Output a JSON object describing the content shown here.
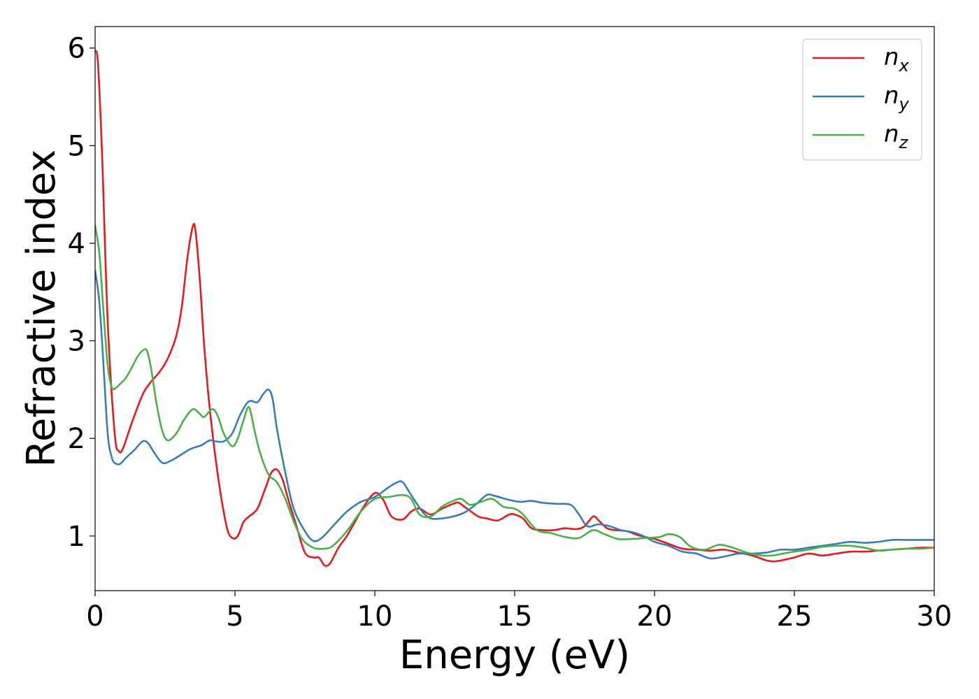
{
  "chart_data": {
    "type": "line",
    "title": "",
    "xlabel": "Energy (eV)",
    "ylabel": "Refractive index",
    "xlim": [
      0,
      30
    ],
    "ylim": [
      0.44,
      6.22
    ],
    "xticks": [
      0,
      5,
      10,
      15,
      20,
      25,
      30
    ],
    "yticks": [
      1,
      2,
      3,
      4,
      5,
      6
    ],
    "grid": false,
    "legend_position": "top-right",
    "series": [
      {
        "name": "n",
        "subscript": "x",
        "color": "#e41a1c",
        "x": [
          0,
          0.1,
          0.25,
          0.45,
          0.7,
          0.85,
          1.0,
          1.3,
          1.7,
          2.0,
          2.3,
          2.6,
          2.9,
          3.1,
          3.3,
          3.5,
          3.6,
          3.75,
          3.9,
          4.1,
          4.4,
          4.7,
          4.9,
          5.1,
          5.3,
          5.5,
          5.8,
          6.1,
          6.3,
          6.5,
          6.7,
          6.9,
          7.2,
          7.5,
          7.8,
          8.0,
          8.2,
          8.4,
          8.7,
          9.0,
          9.3,
          9.6,
          10.0,
          10.3,
          10.6,
          11.0,
          11.3,
          11.6,
          12.0,
          12.4,
          12.8,
          13.0,
          13.3,
          13.7,
          14.0,
          14.4,
          14.8,
          15.0,
          15.3,
          15.6,
          16.0,
          16.4,
          16.8,
          17.2,
          17.5,
          17.8,
          18.0,
          18.3,
          18.6,
          19.0,
          19.5,
          20.0,
          20.5,
          21.0,
          21.5,
          22.0,
          22.5,
          23.0,
          23.5,
          24.0,
          24.3,
          24.7,
          25.0,
          25.5,
          26.0,
          26.5,
          27.0,
          27.5,
          28.0,
          28.5,
          29.0,
          29.5,
          30.0
        ],
        "y": [
          5.97,
          5.85,
          4.9,
          3.2,
          2.05,
          1.87,
          1.9,
          2.15,
          2.45,
          2.58,
          2.68,
          2.82,
          3.05,
          3.35,
          3.85,
          4.18,
          4.1,
          3.6,
          2.95,
          2.3,
          1.6,
          1.1,
          0.98,
          1.0,
          1.14,
          1.2,
          1.28,
          1.5,
          1.65,
          1.68,
          1.58,
          1.38,
          1.1,
          0.83,
          0.78,
          0.78,
          0.7,
          0.72,
          0.88,
          1.0,
          1.15,
          1.3,
          1.44,
          1.37,
          1.2,
          1.17,
          1.25,
          1.28,
          1.22,
          1.28,
          1.33,
          1.34,
          1.28,
          1.2,
          1.18,
          1.16,
          1.22,
          1.22,
          1.18,
          1.08,
          1.06,
          1.06,
          1.08,
          1.07,
          1.1,
          1.2,
          1.16,
          1.08,
          1.06,
          1.05,
          1.0,
          0.97,
          0.92,
          0.87,
          0.86,
          0.85,
          0.86,
          0.83,
          0.8,
          0.75,
          0.74,
          0.76,
          0.78,
          0.82,
          0.8,
          0.82,
          0.84,
          0.84,
          0.85,
          0.86,
          0.87,
          0.88,
          0.88
        ]
      },
      {
        "name": "n",
        "subscript": "y",
        "color": "#377eb8",
        "x": [
          0,
          0.15,
          0.3,
          0.45,
          0.6,
          0.75,
          0.9,
          1.1,
          1.4,
          1.7,
          1.9,
          2.1,
          2.4,
          2.7,
          3.0,
          3.4,
          3.8,
          4.1,
          4.3,
          4.6,
          4.9,
          5.2,
          5.5,
          5.8,
          6.0,
          6.2,
          6.35,
          6.5,
          6.8,
          7.1,
          7.5,
          7.8,
          8.1,
          8.5,
          9.0,
          9.5,
          10.0,
          10.5,
          10.8,
          11.0,
          11.3,
          11.7,
          12.0,
          12.4,
          12.8,
          13.2,
          13.6,
          14.0,
          14.3,
          14.8,
          15.2,
          15.6,
          16.0,
          16.5,
          17.0,
          17.3,
          17.6,
          18.0,
          18.4,
          18.8,
          19.2,
          19.6,
          20.0,
          20.5,
          21.0,
          21.5,
          22.0,
          22.5,
          23.0,
          23.5,
          24.0,
          24.5,
          25.0,
          25.5,
          26.0,
          26.5,
          27.0,
          27.5,
          28.0,
          28.5,
          29.0,
          29.5,
          30.0
        ],
        "y": [
          3.72,
          3.4,
          2.75,
          2.05,
          1.8,
          1.74,
          1.74,
          1.8,
          1.88,
          1.97,
          1.95,
          1.86,
          1.75,
          1.77,
          1.82,
          1.89,
          1.93,
          1.98,
          1.97,
          1.97,
          2.05,
          2.25,
          2.38,
          2.37,
          2.45,
          2.5,
          2.4,
          2.1,
          1.65,
          1.28,
          1.05,
          0.95,
          0.98,
          1.1,
          1.25,
          1.35,
          1.4,
          1.5,
          1.55,
          1.55,
          1.42,
          1.25,
          1.18,
          1.18,
          1.2,
          1.24,
          1.32,
          1.42,
          1.41,
          1.37,
          1.35,
          1.36,
          1.34,
          1.33,
          1.32,
          1.22,
          1.1,
          1.12,
          1.1,
          1.06,
          1.04,
          1.0,
          0.94,
          0.9,
          0.84,
          0.82,
          0.77,
          0.79,
          0.82,
          0.82,
          0.83,
          0.86,
          0.86,
          0.88,
          0.9,
          0.92,
          0.94,
          0.93,
          0.94,
          0.96,
          0.96,
          0.96,
          0.96
        ]
      },
      {
        "name": "n",
        "subscript": "z",
        "color": "#4daf4a",
        "x": [
          0,
          0.15,
          0.3,
          0.45,
          0.6,
          0.75,
          0.9,
          1.1,
          1.3,
          1.5,
          1.7,
          1.85,
          2.0,
          2.2,
          2.4,
          2.6,
          2.9,
          3.2,
          3.5,
          3.75,
          3.9,
          4.2,
          4.4,
          4.6,
          4.9,
          5.1,
          5.3,
          5.5,
          5.7,
          5.9,
          6.2,
          6.5,
          6.8,
          7.1,
          7.4,
          7.8,
          8.2,
          8.5,
          9.0,
          9.5,
          10.0,
          10.5,
          11.0,
          11.3,
          11.6,
          12.0,
          12.4,
          12.8,
          13.1,
          13.4,
          13.8,
          14.2,
          14.6,
          15.0,
          15.3,
          15.8,
          16.3,
          16.8,
          17.3,
          17.8,
          18.2,
          18.7,
          19.2,
          19.7,
          20.2,
          20.5,
          20.9,
          21.3,
          21.8,
          22.3,
          22.8,
          23.3,
          23.8,
          24.2,
          24.6,
          25.0,
          25.5,
          26.0,
          26.5,
          27.0,
          27.5,
          28.0,
          28.5,
          29.0,
          29.5,
          30.0
        ],
        "y": [
          4.18,
          3.9,
          3.3,
          2.75,
          2.52,
          2.52,
          2.56,
          2.62,
          2.72,
          2.83,
          2.9,
          2.9,
          2.72,
          2.35,
          2.08,
          1.98,
          2.05,
          2.2,
          2.3,
          2.25,
          2.22,
          2.3,
          2.22,
          2.05,
          1.92,
          2.0,
          2.18,
          2.32,
          2.08,
          1.85,
          1.63,
          1.55,
          1.38,
          1.15,
          0.97,
          0.88,
          0.87,
          0.9,
          1.05,
          1.25,
          1.38,
          1.4,
          1.42,
          1.38,
          1.22,
          1.2,
          1.3,
          1.36,
          1.38,
          1.32,
          1.35,
          1.38,
          1.3,
          1.28,
          1.22,
          1.06,
          1.03,
          0.99,
          0.98,
          1.06,
          1.02,
          0.97,
          0.97,
          0.98,
          0.99,
          1.02,
          0.99,
          0.89,
          0.86,
          0.91,
          0.88,
          0.83,
          0.8,
          0.8,
          0.82,
          0.84,
          0.86,
          0.89,
          0.9,
          0.9,
          0.88,
          0.85,
          0.86,
          0.87,
          0.87,
          0.88
        ]
      }
    ]
  }
}
